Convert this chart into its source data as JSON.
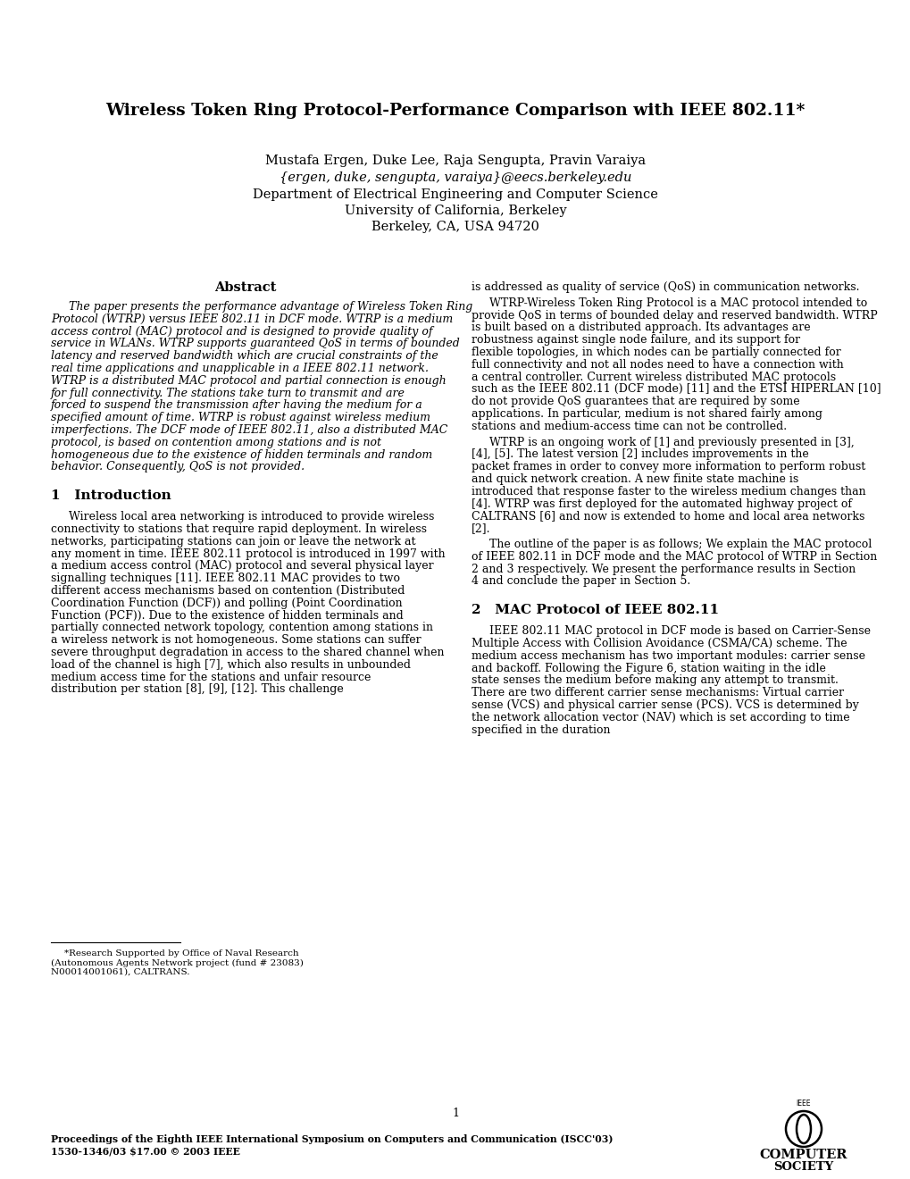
{
  "title": "Wireless Token Ring Protocol-Performance Comparison with IEEE 802.11*",
  "authors": "Mustafa Ergen, Duke Lee, Raja Sengupta, Pravin Varaiya",
  "email": "{ergen, duke, sengupta, varaiya}@eecs.berkeley.edu",
  "dept": "Department of Electrical Engineering and Computer Science",
  "university": "University of California, Berkeley",
  "address": "Berkeley, CA, USA 94720",
  "abstract_heading": "Abstract",
  "abstract_text": "The paper presents the performance advantage of Wireless Token Ring Protocol (WTRP) versus IEEE 802.11 in DCF mode. WTRP is a medium access control (MAC) protocol and is designed to provide quality of service in WLANs.  WTRP supports guaranteed QoS in terms of bounded latency and reserved bandwidth which are crucial constraints of the real time applications and unapplicable in a IEEE 802.11 network.  WTRP is a distributed MAC protocol and partial connection is enough for full connectivity. The stations take turn to transmit and are forced to suspend the transmission after having the medium for a specified amount of time. WTRP is robust against wireless medium imperfections. The DCF mode of IEEE 802.11, also a distributed MAC protocol, is based on contention among stations and is not homogeneous due to the existence of hidden terminals and random behavior. Consequently, QoS is not provided.",
  "intro_heading": "1   Introduction",
  "intro_text_para1": "Wireless local area networking is introduced to provide wireless connectivity to stations that require rapid deployment. In wireless networks, participating stations can join or leave the network at any moment in time. IEEE 802.11 protocol is introduced in 1997 with a medium access control (MAC) protocol and several physical layer signalling techniques [11]. IEEE 802.11 MAC provides to two different access mechanisms based on contention (Distributed Coordination Function (DCF)) and polling (Point Coordination Function (PCF)). Due to the existence of hidden terminals and partially connected network topology, contention among stations in a wireless network is not homogeneous. Some stations can suffer severe throughput degradation in access to the shared channel when load of the channel is high [7], which also results in unbounded medium access time for the stations and unfair resource distribution per station [8], [9], [12]. This challenge",
  "sec2_heading": "2   MAC Protocol of IEEE 802.11",
  "sec2_text": "IEEE 802.11 MAC protocol in DCF mode is based on Carrier-Sense Multiple Access with Collision Avoidance (CSMA/CA) scheme. The medium access mechanism has two important modules: carrier sense and backoff.  Following the Figure 6, station waiting in the idle state senses the medium before making any attempt to transmit.  There are two different carrier sense mechanisms:  Virtual carrier sense (VCS) and physical carrier sense (PCS). VCS is determined by the network allocation vector (NAV) which is set according to time specified in the duration",
  "right_col_text": "is addressed as quality of service (QoS) in communication networks.\n\nWTRP-Wireless Token Ring Protocol is a MAC protocol intended to provide QoS in terms of bounded delay and reserved bandwidth.  WTRP is built based on a distributed approach.  Its advantages are robustness against single node failure, and its support for flexible topologies, in which nodes can be partially connected for full connectivity and not all nodes need to have a connection with a central controller.   Current wireless distributed MAC protocols such as the IEEE 802.11 (DCF mode) [11] and the ETSI HIPERLAN [10] do not provide QoS guarantees that are required by some applications.  In particular, medium is not shared fairly among stations and medium-access time can not be controlled.\n\nWTRP is an ongoing work of [1] and previously presented in [3], [4], [5].  The latest version [2] includes improvements in the packet frames in order to convey more information to perform robust and quick network creation.  A new finite state machine is introduced that response faster to the wireless medium changes than [4].  WTRP was first deployed for the automated highway project of CALTRANS [6] and now is extended to home and local area networks [2].\n\nThe outline of the paper is as follows;  We explain the MAC protocol of IEEE 802.11 in DCF mode and the MAC protocol of WTRP in Section 2 and 3 respectively.  We present the performance results in Section 4 and conclude the paper in Section 5.",
  "footnote": "*Research Supported by Office of Naval Research (Autonomous Agents Network project (fund # 23083) N00014001061), CALTRANS.",
  "page_number": "1",
  "proceedings": "Proceedings of the Eighth IEEE International Symposium on Computers and Communication (ISCC'03)",
  "isbn": "1530-1346/03 $17.00 © 2003 IEEE",
  "bg_color": "#ffffff"
}
